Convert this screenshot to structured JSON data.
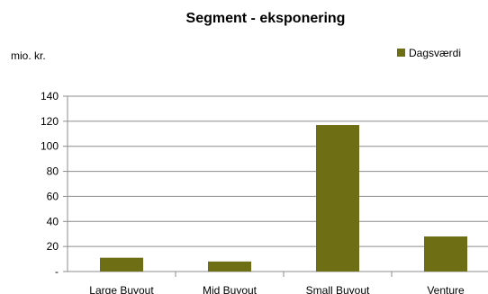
{
  "chart_data": {
    "type": "bar",
    "title": "Segment - eksponering",
    "unit_label": "mio. kr.",
    "categories": [
      "Large Buyout",
      "Mid Buyout",
      "Small Buyout",
      "Venture"
    ],
    "series": [
      {
        "name": "Dagsværdi",
        "color": "#6e6e14",
        "values": [
          11,
          8,
          117,
          28
        ]
      }
    ],
    "yticks": [
      {
        "value": 0,
        "label": "-"
      },
      {
        "value": 20,
        "label": "20"
      },
      {
        "value": 40,
        "label": "40"
      },
      {
        "value": 60,
        "label": "60"
      },
      {
        "value": 80,
        "label": "80"
      },
      {
        "value": 100,
        "label": "100"
      },
      {
        "value": 120,
        "label": "120"
      },
      {
        "value": 140,
        "label": "140"
      }
    ],
    "ylim": [
      0,
      140
    ],
    "grid": true,
    "legend_position": "top-right"
  }
}
